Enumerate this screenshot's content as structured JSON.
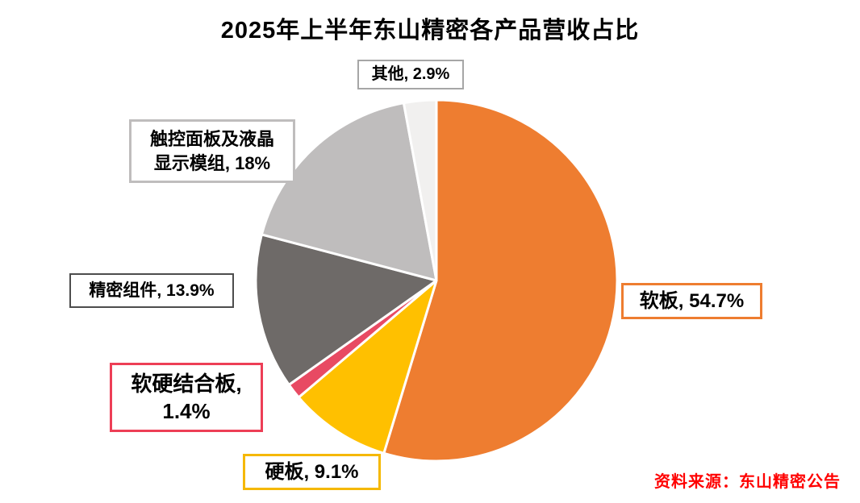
{
  "title": "2025年上半年东山精密各产品营收占比",
  "source": "资料来源：东山精密公告",
  "chart_data": {
    "type": "pie",
    "title": "2025年上半年东山精密各产品营收占比",
    "unit": "%",
    "start_angle_deg": 0,
    "direction": "clockwise",
    "slices": [
      {
        "id": "soft-board",
        "label": "软板",
        "value": 54.7,
        "color": "#EE7D30"
      },
      {
        "id": "rigid-board",
        "label": "硬板",
        "value": 9.1,
        "color": "#FFC000"
      },
      {
        "id": "rigid-flex-board",
        "label": "软硬结合板",
        "value": 1.4,
        "color": "#E84A63"
      },
      {
        "id": "precision-components",
        "label": "精密组件",
        "value": 13.9,
        "color": "#6E6A68"
      },
      {
        "id": "touch-lcd-module",
        "label": "触控面板及液晶显示模组",
        "value": 18,
        "color": "#BFBDBD"
      },
      {
        "id": "others",
        "label": "其他",
        "value": 2.9,
        "color": "#F1F0EF"
      }
    ],
    "callouts": [
      {
        "id": "others",
        "lines": [
          "其他, 2.9%"
        ],
        "border_color": "#A6A6A6"
      },
      {
        "id": "touch-lcd-module",
        "lines": [
          "触控面板及液晶",
          "显示模组, 18%"
        ],
        "border_color": "#BFBDBD"
      },
      {
        "id": "precision-components",
        "lines": [
          "精密组件, 13.9%"
        ],
        "border_color": "#4D4D4D"
      },
      {
        "id": "rigid-flex-board",
        "lines": [
          "软硬结合板,",
          "1.4%"
        ],
        "border_color": "#ED3E56"
      },
      {
        "id": "rigid-board",
        "lines": [
          "硬板, 9.1%"
        ],
        "border_color": "#F5B800"
      },
      {
        "id": "soft-board",
        "lines": [
          "软板, 54.7%"
        ],
        "border_color": "#EE7D30"
      }
    ]
  }
}
